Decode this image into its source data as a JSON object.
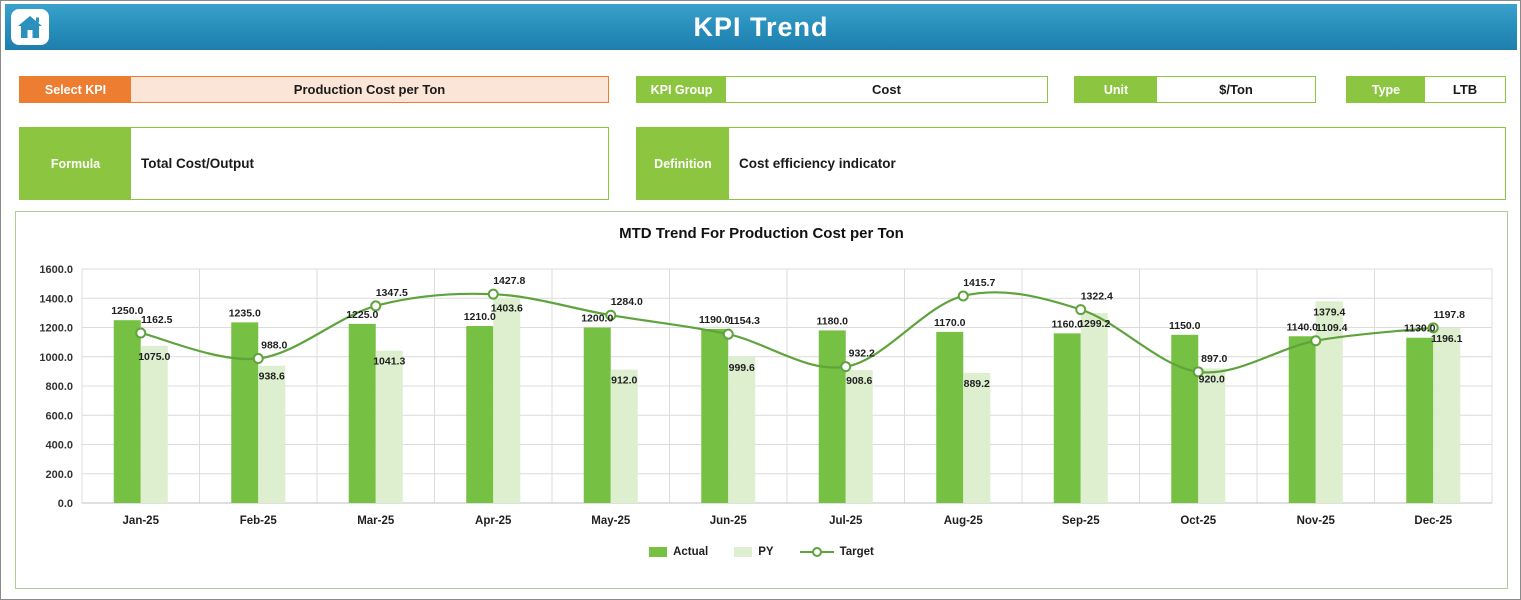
{
  "header": {
    "title": "KPI Trend"
  },
  "filters": {
    "select_kpi_label": "Select KPI",
    "select_kpi_value": "Production Cost per Ton",
    "kpi_group_label": "KPI Group",
    "kpi_group_value": "Cost",
    "unit_label": "Unit",
    "unit_value": "$/Ton",
    "type_label": "Type",
    "type_value": "LTB",
    "formula_label": "Formula",
    "formula_value": "Total Cost/Output",
    "definition_label": "Definition",
    "definition_value": "Cost efficiency indicator"
  },
  "colors": {
    "accent_orange": "#ED7D31",
    "accent_green": "#8CC540",
    "banner_blue": "#2A90BD",
    "actual_bar": "#76C043",
    "py_bar": "#DDEFCE",
    "target_line": "#5EA33C"
  },
  "chart_data": {
    "type": "bar",
    "title": "MTD Trend For Production Cost per Ton",
    "categories": [
      "Jan-25",
      "Feb-25",
      "Mar-25",
      "Apr-25",
      "May-25",
      "Jun-25",
      "Jul-25",
      "Aug-25",
      "Sep-25",
      "Oct-25",
      "Nov-25",
      "Dec-25"
    ],
    "series": [
      {
        "name": "Actual",
        "type": "bar",
        "color": "#76C043",
        "values": [
          1250.0,
          1235.0,
          1225.0,
          1210.0,
          1200.0,
          1190.0,
          1180.0,
          1170.0,
          1160.0,
          1150.0,
          1140.0,
          1130.0
        ]
      },
      {
        "name": "PY",
        "type": "bar",
        "color": "#DDEFCE",
        "values": [
          1075.0,
          938.6,
          1041.3,
          1403.6,
          912.0,
          999.6,
          908.6,
          889.2,
          1299.2,
          920.0,
          1379.4,
          1196.1
        ]
      },
      {
        "name": "Target",
        "type": "line",
        "color": "#5EA33C",
        "values": [
          1162.5,
          988.0,
          1347.5,
          1427.8,
          1284.0,
          1154.3,
          932.2,
          1415.7,
          1322.4,
          897.0,
          1109.4,
          1197.8
        ]
      }
    ],
    "ylim": [
      0,
      1600
    ],
    "ytick_step": 200,
    "grid": true,
    "legend_position": "bottom"
  }
}
